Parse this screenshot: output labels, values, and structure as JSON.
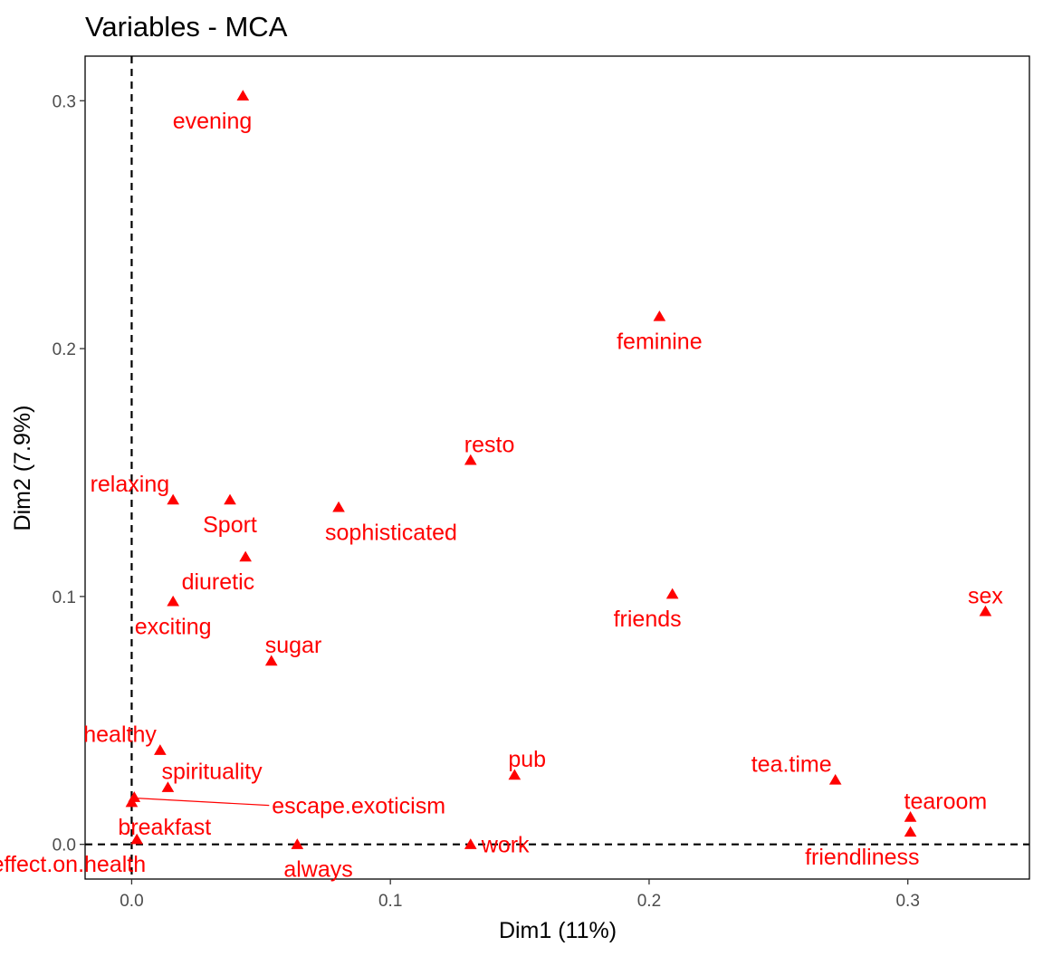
{
  "chart_data": {
    "type": "scatter",
    "title": "Variables - MCA",
    "xlabel": "Dim1 (11%)",
    "ylabel": "Dim2 (7.9%)",
    "xlim": [
      -0.018,
      0.347
    ],
    "ylim": [
      -0.014,
      0.318
    ],
    "x_ticks": [
      0.0,
      0.1,
      0.2,
      0.3
    ],
    "x_tick_labels": [
      "0.0",
      "0.1",
      "0.2",
      "0.3"
    ],
    "y_ticks": [
      0.0,
      0.1,
      0.2,
      0.3
    ],
    "y_tick_labels": [
      "0.0",
      "0.1",
      "0.2",
      "0.3"
    ],
    "reference_lines": {
      "x": 0,
      "y": 0,
      "style": "dashed"
    },
    "grid": false,
    "marker": "triangle",
    "color": "#ff0000",
    "points": [
      {
        "label": "evening",
        "x": 0.043,
        "y": 0.302,
        "label_pos": "below-left"
      },
      {
        "label": "feminine",
        "x": 0.204,
        "y": 0.213,
        "label_pos": "below"
      },
      {
        "label": "resto",
        "x": 0.131,
        "y": 0.155,
        "label_pos": "above-right"
      },
      {
        "label": "relaxing",
        "x": 0.016,
        "y": 0.139,
        "label_pos": "above-left"
      },
      {
        "label": "Sport",
        "x": 0.038,
        "y": 0.139,
        "label_pos": "below"
      },
      {
        "label": "sophisticated",
        "x": 0.08,
        "y": 0.136,
        "label_pos": "below-right"
      },
      {
        "label": "diuretic",
        "x": 0.044,
        "y": 0.116,
        "label_pos": "below-left"
      },
      {
        "label": "exciting",
        "x": 0.016,
        "y": 0.098,
        "label_pos": "below"
      },
      {
        "label": "sugar",
        "x": 0.054,
        "y": 0.074,
        "label_pos": "above-right"
      },
      {
        "label": "friends",
        "x": 0.209,
        "y": 0.101,
        "label_pos": "below-left"
      },
      {
        "label": "sex",
        "x": 0.33,
        "y": 0.094,
        "label_pos": "above"
      },
      {
        "label": "healthy",
        "x": 0.011,
        "y": 0.038,
        "label_pos": "above-left"
      },
      {
        "label": "spirituality",
        "x": 0.014,
        "y": 0.023,
        "label_pos": "above-right"
      },
      {
        "label": "pub",
        "x": 0.148,
        "y": 0.028,
        "label_pos": "above-right"
      },
      {
        "label": "tea.time",
        "x": 0.272,
        "y": 0.026,
        "label_pos": "above-left"
      },
      {
        "label": "tearoom",
        "x": 0.301,
        "y": 0.011,
        "label_pos": "above-right"
      },
      {
        "label": "friendliness",
        "x": 0.301,
        "y": 0.005,
        "label_pos": "below-left"
      },
      {
        "label": "escape.exoticism",
        "x": 0.001,
        "y": 0.019,
        "label_pos": "far-right"
      },
      {
        "label": "breakfast",
        "x": 0.0,
        "y": 0.017,
        "label_pos": "below-right"
      },
      {
        "label": "effect.on.health",
        "x": 0.002,
        "y": 0.002,
        "label_pos": "below-left"
      },
      {
        "label": "always",
        "x": 0.064,
        "y": 0.0,
        "label_pos": "below-right"
      },
      {
        "label": "work",
        "x": 0.131,
        "y": 0.0,
        "label_pos": "right"
      }
    ]
  }
}
